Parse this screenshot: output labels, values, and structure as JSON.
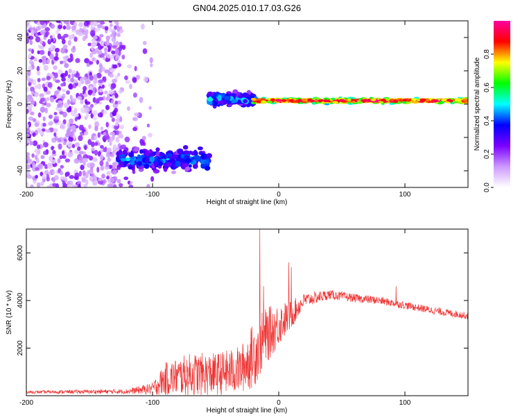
{
  "title": "GN04.2025.010.17.03.G26",
  "chart_data": [
    {
      "type": "heatmap",
      "xlabel": "Height of straight line (km)",
      "ylabel": "Frequency (Hz)",
      "xlim": [
        -200,
        150
      ],
      "ylim": [
        -50,
        50
      ],
      "xticks": [
        -200,
        -100,
        0,
        100
      ],
      "yticks": [
        -40,
        -20,
        0,
        20,
        40
      ],
      "colorbar": {
        "label": "Normalized spectral amplitude",
        "range": [
          0,
          1
        ],
        "ticks": [
          0.0,
          0.2,
          0.4,
          0.6,
          0.8
        ],
        "colors": [
          "#ffffff",
          "#cc99ff",
          "#7a00ff",
          "#0000ff",
          "#00ffff",
          "#00ff00",
          "#ffff00",
          "#ff0000",
          "#ff00a0"
        ]
      },
      "segments": [
        {
          "x_range": [
            -200,
            -100
          ],
          "freq_range": [
            -50,
            50
          ],
          "amplitude": 0.1,
          "description": "noise"
        },
        {
          "x_range": [
            -128,
            -55
          ],
          "freq_range": [
            -42,
            -25
          ],
          "amplitude": 0.4
        },
        {
          "x_range": [
            -55,
            -20
          ],
          "freq_range": [
            -2,
            8
          ],
          "amplitude": 0.45
        },
        {
          "x_range": [
            -20,
            150
          ],
          "freq_range": [
            0,
            4
          ],
          "amplitude": 0.95
        }
      ]
    },
    {
      "type": "line",
      "xlabel": "Height of straight line (km)",
      "ylabel": "SNR (10 * v/v)",
      "xlim": [
        -200,
        150
      ],
      "ylim": [
        0,
        7000
      ],
      "xticks": [
        -200,
        -100,
        0,
        100
      ],
      "yticks": [
        2000,
        4000,
        6000
      ],
      "color": "#ee3333",
      "envelope": [
        {
          "x": -200,
          "mean": 150,
          "spread": 60
        },
        {
          "x": -120,
          "mean": 180,
          "spread": 100
        },
        {
          "x": -100,
          "mean": 300,
          "spread": 250
        },
        {
          "x": -90,
          "mean": 700,
          "spread": 700
        },
        {
          "x": -70,
          "mean": 900,
          "spread": 900
        },
        {
          "x": -50,
          "mean": 900,
          "spread": 900
        },
        {
          "x": -30,
          "mean": 1100,
          "spread": 1000
        },
        {
          "x": -20,
          "mean": 1700,
          "spread": 1400
        },
        {
          "x": -10,
          "mean": 2500,
          "spread": 1200
        },
        {
          "x": 0,
          "mean": 3000,
          "spread": 900
        },
        {
          "x": 10,
          "mean": 3400,
          "spread": 600
        },
        {
          "x": 20,
          "mean": 4000,
          "spread": 300
        },
        {
          "x": 40,
          "mean": 4250,
          "spread": 200
        },
        {
          "x": 60,
          "mean": 4100,
          "spread": 180
        },
        {
          "x": 80,
          "mean": 4000,
          "spread": 170
        },
        {
          "x": 100,
          "mean": 3800,
          "spread": 160
        },
        {
          "x": 120,
          "mean": 3600,
          "spread": 160
        },
        {
          "x": 150,
          "mean": 3350,
          "spread": 150
        }
      ],
      "spikes": [
        {
          "x": -15,
          "y": 7000
        },
        {
          "x": -12,
          "y": 4600
        },
        {
          "x": 8,
          "y": 5600
        },
        {
          "x": 10,
          "y": 5400
        },
        {
          "x": 93,
          "y": 4600
        }
      ]
    }
  ]
}
